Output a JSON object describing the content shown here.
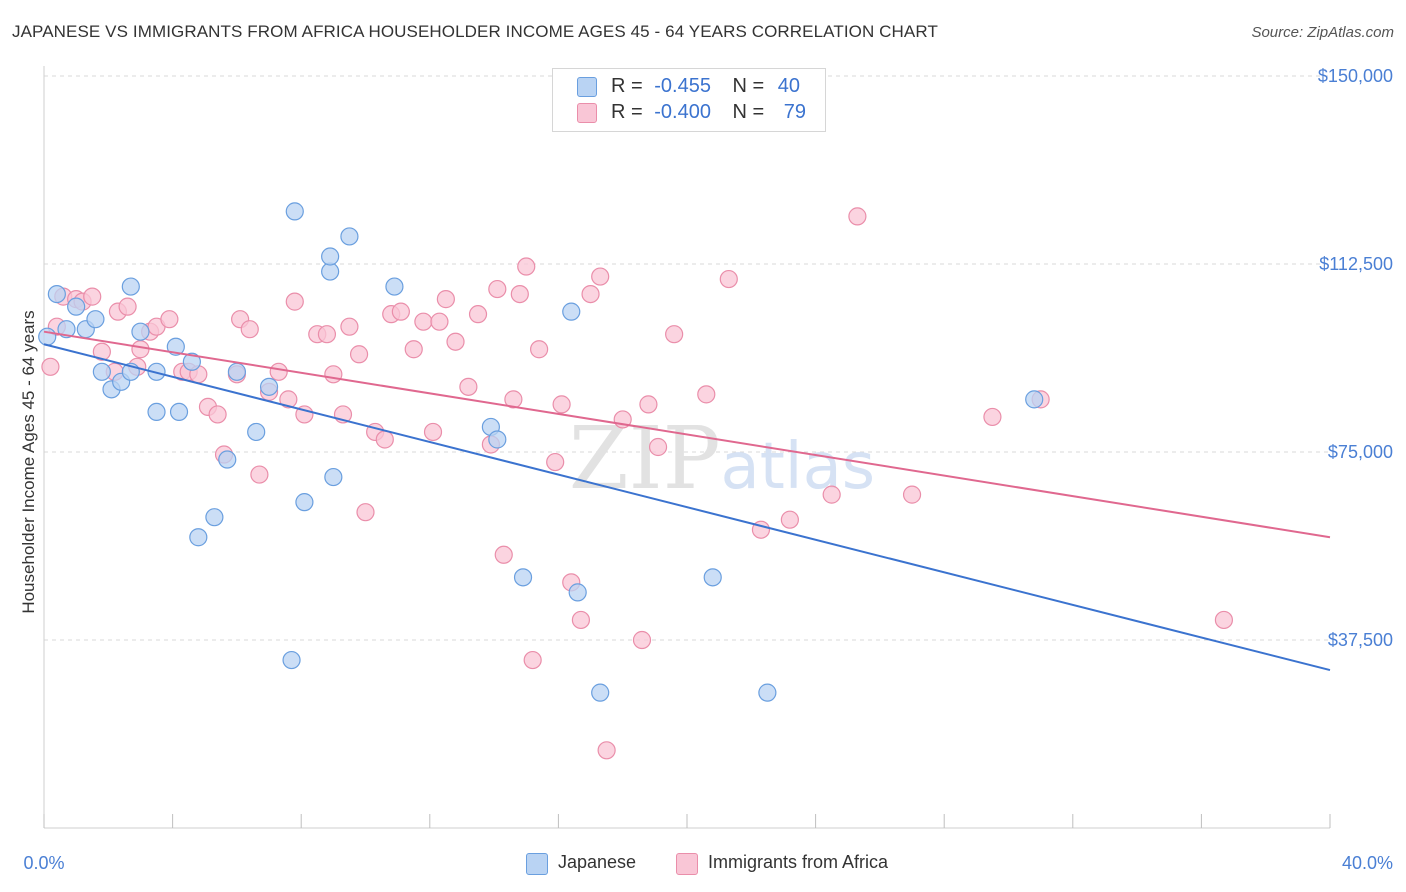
{
  "title": "JAPANESE VS IMMIGRANTS FROM AFRICA HOUSEHOLDER INCOME AGES 45 - 64 YEARS CORRELATION CHART",
  "source": "Source: ZipAtlas.com",
  "watermark": "ZIPatlas",
  "legend": {
    "rows": [
      {
        "r_label": "R =",
        "r_value": "-0.455",
        "n_label": "N =",
        "n_value": "40"
      },
      {
        "r_label": "R =",
        "r_value": "-0.400",
        "n_label": "N =",
        "n_value": "79"
      }
    ]
  },
  "colors": {
    "japanese_fill": "#b9d3f3",
    "japanese_stroke": "#6a9fdf",
    "japanese_line": "#3b73cf",
    "africa_fill": "#f9c6d6",
    "africa_stroke": "#ea8eaa",
    "africa_line": "#e0688f",
    "tick_text": "#4a7fd4",
    "grid": "#d9d9d9"
  },
  "chart_data": {
    "type": "scatter",
    "title": "JAPANESE VS IMMIGRANTS FROM AFRICA HOUSEHOLDER INCOME AGES 45 - 64 YEARS CORRELATION CHART",
    "xlabel": "",
    "ylabel": "Householder Income Ages 45 - 64 years",
    "xlim": [
      0,
      40
    ],
    "ylim": [
      0,
      152000
    ],
    "x_tick_labels": [
      "0.0%",
      "40.0%"
    ],
    "y_ticks": [
      {
        "value": 37500,
        "label": "$37,500"
      },
      {
        "value": 75000,
        "label": "$75,000"
      },
      {
        "value": 112500,
        "label": "$112,500"
      },
      {
        "value": 150000,
        "label": "$150,000"
      }
    ],
    "grid": true,
    "legend_position": "top-center",
    "series": [
      {
        "name": "Japanese",
        "r": -0.455,
        "n": 40,
        "trend": {
          "x": [
            0,
            40
          ],
          "y": [
            96500,
            31500
          ]
        },
        "points": [
          [
            0.1,
            98000
          ],
          [
            0.4,
            106500
          ],
          [
            0.7,
            99500
          ],
          [
            1.0,
            104000
          ],
          [
            1.3,
            99500
          ],
          [
            1.6,
            101500
          ],
          [
            1.8,
            91000
          ],
          [
            2.1,
            87500
          ],
          [
            2.4,
            89000
          ],
          [
            2.7,
            108000
          ],
          [
            2.7,
            91000
          ],
          [
            3.0,
            99000
          ],
          [
            3.5,
            91000
          ],
          [
            3.5,
            83000
          ],
          [
            4.1,
            96000
          ],
          [
            4.2,
            83000
          ],
          [
            4.6,
            93000
          ],
          [
            4.8,
            58000
          ],
          [
            5.3,
            62000
          ],
          [
            5.7,
            73500
          ],
          [
            6.0,
            91000
          ],
          [
            6.6,
            79000
          ],
          [
            7.0,
            88000
          ],
          [
            7.7,
            33500
          ],
          [
            7.8,
            123000
          ],
          [
            8.1,
            65000
          ],
          [
            8.9,
            111000
          ],
          [
            8.9,
            114000
          ],
          [
            9.5,
            118000
          ],
          [
            9.0,
            70000
          ],
          [
            10.9,
            108000
          ],
          [
            13.9,
            80000
          ],
          [
            14.1,
            77500
          ],
          [
            14.9,
            50000
          ],
          [
            16.4,
            103000
          ],
          [
            16.6,
            47000
          ],
          [
            17.3,
            27000
          ],
          [
            20.8,
            50000
          ],
          [
            22.5,
            27000
          ],
          [
            30.8,
            85500
          ]
        ]
      },
      {
        "name": "Immigrants from Africa",
        "r": -0.4,
        "n": 79,
        "trend": {
          "x": [
            0,
            40
          ],
          "y": [
            99000,
            58000
          ]
        },
        "points": [
          [
            0.2,
            92000
          ],
          [
            0.4,
            100000
          ],
          [
            0.6,
            106000
          ],
          [
            1.0,
            105500
          ],
          [
            1.2,
            105000
          ],
          [
            1.5,
            106000
          ],
          [
            1.8,
            95000
          ],
          [
            2.2,
            91000
          ],
          [
            2.3,
            103000
          ],
          [
            2.6,
            104000
          ],
          [
            2.9,
            92000
          ],
          [
            3.0,
            95500
          ],
          [
            3.3,
            99000
          ],
          [
            3.5,
            100000
          ],
          [
            3.9,
            101500
          ],
          [
            4.3,
            91000
          ],
          [
            4.5,
            91000
          ],
          [
            4.8,
            90500
          ],
          [
            5.1,
            84000
          ],
          [
            5.4,
            82500
          ],
          [
            5.6,
            74500
          ],
          [
            6.0,
            90500
          ],
          [
            6.1,
            101500
          ],
          [
            6.4,
            99500
          ],
          [
            6.7,
            70500
          ],
          [
            7.0,
            87000
          ],
          [
            7.3,
            91000
          ],
          [
            7.6,
            85500
          ],
          [
            7.8,
            105000
          ],
          [
            8.1,
            82500
          ],
          [
            8.5,
            98500
          ],
          [
            8.8,
            98500
          ],
          [
            9.0,
            90500
          ],
          [
            9.3,
            82500
          ],
          [
            9.5,
            100000
          ],
          [
            9.8,
            94500
          ],
          [
            10.0,
            63000
          ],
          [
            10.3,
            79000
          ],
          [
            10.6,
            77500
          ],
          [
            10.8,
            102500
          ],
          [
            11.1,
            103000
          ],
          [
            11.5,
            95500
          ],
          [
            11.8,
            101000
          ],
          [
            12.1,
            79000
          ],
          [
            12.3,
            101000
          ],
          [
            12.5,
            105500
          ],
          [
            12.8,
            97000
          ],
          [
            13.2,
            88000
          ],
          [
            13.5,
            102500
          ],
          [
            13.9,
            76500
          ],
          [
            14.1,
            107500
          ],
          [
            14.6,
            85500
          ],
          [
            14.8,
            106500
          ],
          [
            15.0,
            112000
          ],
          [
            15.4,
            95500
          ],
          [
            15.9,
            73000
          ],
          [
            16.1,
            84500
          ],
          [
            16.4,
            49000
          ],
          [
            16.7,
            41500
          ],
          [
            17.0,
            106500
          ],
          [
            17.3,
            110000
          ],
          [
            17.5,
            15500
          ],
          [
            18.0,
            81500
          ],
          [
            18.6,
            37500
          ],
          [
            18.8,
            84500
          ],
          [
            19.1,
            76000
          ],
          [
            19.6,
            98500
          ],
          [
            20.6,
            86500
          ],
          [
            21.3,
            109500
          ],
          [
            22.3,
            59500
          ],
          [
            23.2,
            61500
          ],
          [
            24.5,
            66500
          ],
          [
            25.3,
            122000
          ],
          [
            27.0,
            66500
          ],
          [
            29.5,
            82000
          ],
          [
            31.0,
            85500
          ],
          [
            14.3,
            54500
          ],
          [
            15.2,
            33500
          ],
          [
            36.7,
            41500
          ]
        ]
      }
    ]
  }
}
